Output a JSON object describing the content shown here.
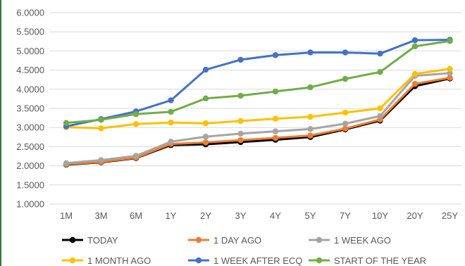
{
  "chart_data": {
    "type": "line",
    "title": "",
    "xlabel": "",
    "ylabel": "",
    "ylim": [
      1.0,
      6.0
    ],
    "yticks": [
      "1.0000",
      "1.5000",
      "2.0000",
      "2.5000",
      "3.0000",
      "3.5000",
      "4.0000",
      "4.5000",
      "5.0000",
      "5.5000",
      "6.0000"
    ],
    "grid": "horizontal",
    "legend_position": "bottom",
    "categories": [
      "1M",
      "3M",
      "6M",
      "1Y",
      "2Y",
      "3Y",
      "4Y",
      "5Y",
      "7Y",
      "10Y",
      "20Y",
      "25Y"
    ],
    "series": [
      {
        "name": "TODAY",
        "color": "#000000",
        "values": [
          2.03,
          2.09,
          2.2,
          2.54,
          2.56,
          2.62,
          2.68,
          2.75,
          2.95,
          3.18,
          4.08,
          4.28
        ]
      },
      {
        "name": "1 DAY AGO",
        "color": "#ED7D31",
        "values": [
          2.04,
          2.1,
          2.21,
          2.57,
          2.61,
          2.67,
          2.73,
          2.79,
          2.97,
          3.21,
          4.14,
          4.3
        ]
      },
      {
        "name": "1 WEEK AGO",
        "color": "#A5A5A5",
        "values": [
          2.07,
          2.15,
          2.26,
          2.63,
          2.76,
          2.84,
          2.9,
          2.96,
          3.1,
          3.3,
          4.35,
          4.42
        ]
      },
      {
        "name": "1 MONTH AGO",
        "color": "#FFC000",
        "values": [
          3.01,
          2.98,
          3.09,
          3.13,
          3.11,
          3.17,
          3.23,
          3.28,
          3.39,
          3.5,
          4.4,
          4.53
        ]
      },
      {
        "name": "1 WEEK AFTER ECQ",
        "color": "#4472C4",
        "values": [
          3.03,
          3.22,
          3.42,
          3.71,
          4.51,
          4.77,
          4.89,
          4.96,
          4.96,
          4.93,
          5.28,
          5.29
        ]
      },
      {
        "name": "START OF THE YEAR",
        "color": "#70AD47",
        "values": [
          3.12,
          3.2,
          3.35,
          3.41,
          3.76,
          3.83,
          3.94,
          4.05,
          4.27,
          4.45,
          5.12,
          5.26
        ]
      }
    ]
  }
}
